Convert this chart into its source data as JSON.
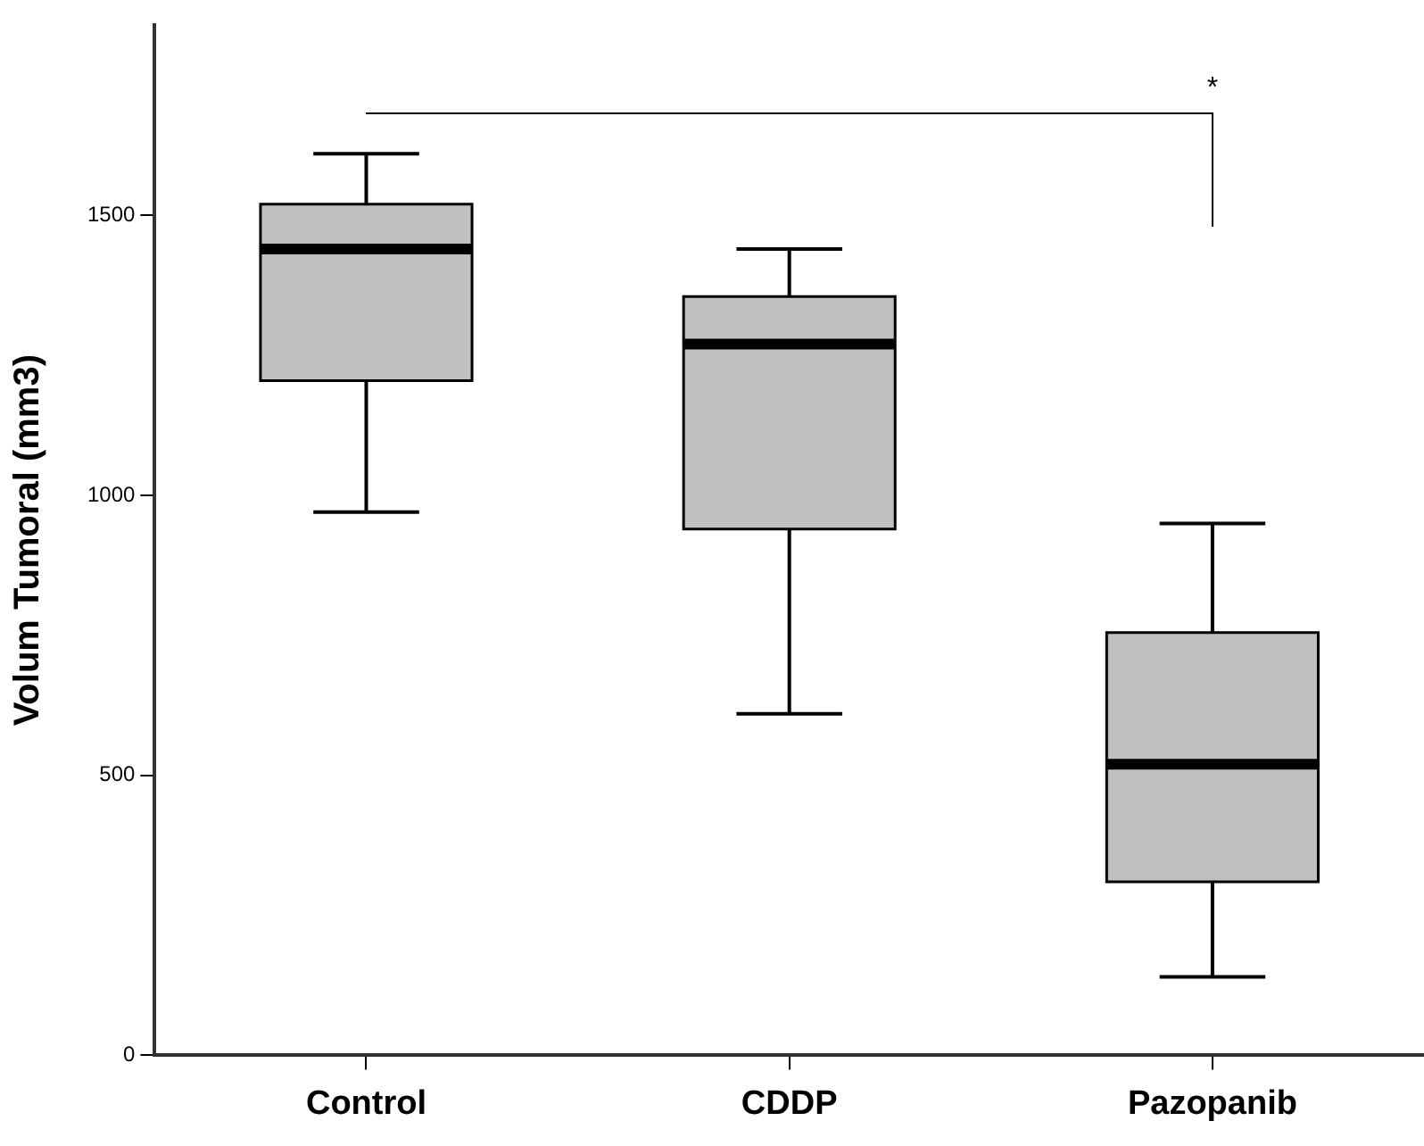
{
  "chart_data": {
    "type": "box",
    "ylabel": "Volum Tumoral (mm3)",
    "categories": [
      "Control",
      "CDDP",
      "Pazopanib"
    ],
    "boxes": [
      {
        "low": 970,
        "q1": 1205,
        "median": 1440,
        "q3": 1520,
        "high": 1610
      },
      {
        "low": 610,
        "q1": 940,
        "median": 1270,
        "q3": 1355,
        "high": 1440
      },
      {
        "low": 140,
        "q1": 310,
        "median": 520,
        "q3": 755,
        "high": 950
      }
    ],
    "color": "#c0c0c0",
    "ylim": [
      0,
      1840
    ],
    "yticks": [
      0,
      500,
      1000,
      1500
    ],
    "grid": false,
    "legend": false,
    "annotations": [
      "*"
    ]
  }
}
